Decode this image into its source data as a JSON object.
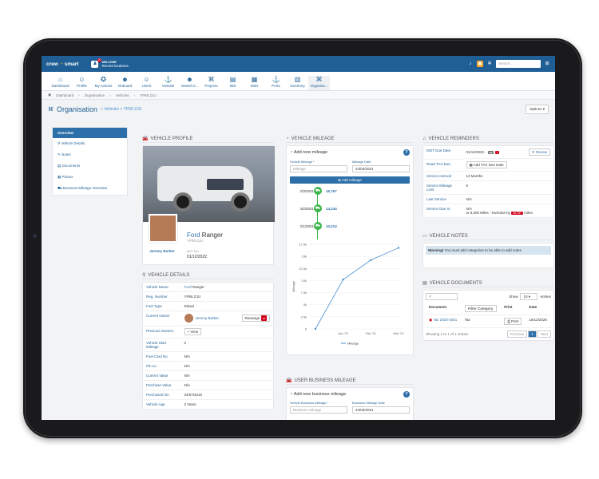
{
  "brand": {
    "name1": "crew",
    "name2": "smart"
  },
  "top": {
    "welcome": "WELCOME",
    "location": "Recent locations",
    "notif_count": "20",
    "search_placeholder": "Search..."
  },
  "nav": {
    "items": [
      {
        "label": "Dashboard",
        "icon": "home-icon",
        "g": "⌂"
      },
      {
        "label": "Profile",
        "icon": "user-icon",
        "g": "☺"
      },
      {
        "label": "My Actions",
        "icon": "actions-icon",
        "g": "✪",
        "badge": "1"
      },
      {
        "label": "Onboard",
        "icon": "onboard-icon",
        "g": "☻"
      },
      {
        "label": "Users",
        "icon": "users-icon",
        "g": "☺"
      },
      {
        "label": "Vessels",
        "icon": "vessel-icon",
        "g": "⚓"
      },
      {
        "label": "Vessel O...",
        "icon": "vessel-officer-icon",
        "g": "☻"
      },
      {
        "label": "Projects",
        "icon": "projects-icon",
        "g": "⌘"
      },
      {
        "label": "IMS",
        "icon": "ims-icon",
        "g": "▤"
      },
      {
        "label": "Sites",
        "icon": "sites-icon",
        "g": "▦"
      },
      {
        "label": "Ports",
        "icon": "ports-icon",
        "g": "⚓"
      },
      {
        "label": "Inventory",
        "icon": "inventory-icon",
        "g": "▥"
      },
      {
        "label": "Organise...",
        "icon": "organisation-icon",
        "g": "⌘"
      }
    ]
  },
  "breadcrumb": [
    "Dashboard",
    "Organisation",
    "Vehicles",
    "YP65 ZJU"
  ],
  "header": {
    "title": "Organisation",
    "sub": "> Vehicles > YP65 ZJU",
    "options": "Options"
  },
  "sidebar": [
    "Overview",
    "Vehicle Details",
    "Notes",
    "Documents",
    "Photos",
    "Business Mileage Overview"
  ],
  "profile": {
    "title": "VEHICLE PROFILE",
    "make": "Ford",
    "model": "Ranger",
    "reg": "YP65 ZJU",
    "owner": "Jeremy Barber",
    "mot_label": "MOT Due",
    "mot": "01/12/2022"
  },
  "details": {
    "title": "VEHICLE DETAILS",
    "rows": [
      [
        "Vehicle Name",
        "Ford Ranger"
      ],
      [
        "Reg. Number",
        "YP65 ZJU"
      ],
      [
        "Fuel Type",
        "Diesel"
      ],
      [
        "Current Owner",
        ""
      ],
      [
        "Previous Owners",
        ""
      ],
      [
        "Vehicle Start Mileage",
        "0"
      ],
      [
        "Fuel Card No",
        "N/A"
      ],
      [
        "Pin no",
        "N/A"
      ],
      [
        "Current Value",
        "N/A"
      ],
      [
        "Purchase Value",
        "N/A"
      ],
      [
        "Purchased On",
        "04/07/2018"
      ],
      [
        "Vehicle Age",
        "2 Years"
      ]
    ],
    "owner_name": "Jeremy Barber",
    "reassign": "Reassign",
    "view": "View"
  },
  "mileage": {
    "title": "VEHICLE MILEAGE",
    "add": "Add new mileage",
    "vm_label": "Vehicle Mileage *",
    "vm_ph": "Mileage",
    "date_label": "Mileage Date",
    "date": "24/03/2021",
    "btn": "Add mileage",
    "entries": [
      [
        "2/3/2021",
        "16,767"
      ],
      [
        "4/2/2021",
        "14,234"
      ],
      [
        "2/1/2021",
        "10,213"
      ]
    ]
  },
  "chart_data": {
    "type": "line",
    "categories": [
      "",
      "Jan '21",
      "Feb '21",
      "Mar '21"
    ],
    "values": [
      0,
      10213,
      14234,
      16767
    ],
    "ylim": [
      0,
      17500
    ],
    "yticks": [
      "0",
      "2.5k",
      "5k",
      "7.5k",
      "10k",
      "12.5k",
      "15k",
      "17.5k"
    ],
    "ylabel": "Mileage",
    "series": [
      {
        "name": "Mileage",
        "values": [
          0,
          10213,
          14234,
          16767
        ]
      }
    ]
  },
  "business": {
    "title": "USER BUSINESS MILEAGE",
    "add": "Add new business mileage",
    "l1": "Vehicle Business Mileage *",
    "p1": "Business mileage",
    "l2": "Business Mileage Date",
    "d2": "24/03/2021"
  },
  "reminders": {
    "title": "VEHICLE REMINDERS",
    "rows": [
      [
        "MOT Due Date",
        "01/12/2022 -",
        "Renew"
      ],
      [
        "Road TAX Due",
        "",
        "Add TAX Due Date"
      ],
      [
        "Service Interval",
        "12 Months",
        ""
      ],
      [
        "Service Mileage Limit",
        "0",
        ""
      ],
      [
        "Last Service",
        "N/A",
        ""
      ],
      [
        "Service Due In",
        "N/A",
        ""
      ]
    ],
    "service_note": "or 8,000 Miles - Overdue by",
    "overdue": "16,767",
    "miles": "miles"
  },
  "notes": {
    "title": "VEHICLE NOTES",
    "warn_bold": "Warning!",
    "warn": "You must add categories to be able to add notes"
  },
  "documents": {
    "title": "VEHICLE DOCUMENTS",
    "show": "Show",
    "count": "10",
    "entries": "entries",
    "cols": [
      "Document",
      "Filter Category",
      "Print",
      "Date"
    ],
    "row": [
      "Tax 2020-2021",
      "Tax",
      "Print",
      "16/12/2020"
    ],
    "info": "Showing 1 to 1 of 1 entries",
    "prev": "Previous",
    "page": "1",
    "next": "Next"
  }
}
